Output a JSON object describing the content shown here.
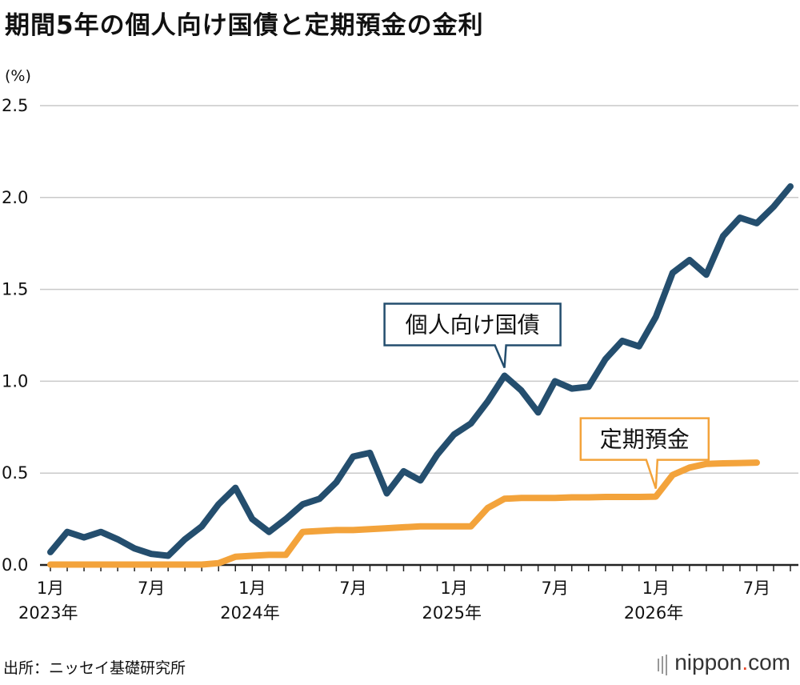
{
  "chart_data": {
    "type": "line",
    "title": "期間5年の個人向け国債と定期預金の金利",
    "unit_label": "(%)",
    "ylim": [
      0,
      2.5
    ],
    "y_ticks": [
      "0.0",
      "0.5",
      "1.0",
      "1.5",
      "2.0",
      "2.5"
    ],
    "x_range": [
      "2023-01",
      "2026-09"
    ],
    "x_ticks": [
      {
        "date": "2023-01",
        "month": "1月",
        "year": "2023年"
      },
      {
        "date": "2023-07",
        "month": "7月",
        "year": ""
      },
      {
        "date": "2024-01",
        "month": "1月",
        "year": "2024年"
      },
      {
        "date": "2024-07",
        "month": "7月",
        "year": ""
      },
      {
        "date": "2025-01",
        "month": "1月",
        "year": "2025年"
      },
      {
        "date": "2025-07",
        "month": "7月",
        "year": ""
      },
      {
        "date": "2026-01",
        "month": "1月",
        "year": "2026年"
      },
      {
        "date": "2026-07",
        "month": "7月",
        "year": ""
      }
    ],
    "grid": true,
    "series": [
      {
        "name": "個人向け国債",
        "color": "#244e6e",
        "label_date": "2025-04",
        "points": [
          [
            "2023-01",
            0.07
          ],
          [
            "2023-02",
            0.18
          ],
          [
            "2023-03",
            0.15
          ],
          [
            "2023-04",
            0.18
          ],
          [
            "2023-05",
            0.14
          ],
          [
            "2023-06",
            0.09
          ],
          [
            "2023-07",
            0.06
          ],
          [
            "2023-08",
            0.05
          ],
          [
            "2023-09",
            0.14
          ],
          [
            "2023-10",
            0.21
          ],
          [
            "2023-11",
            0.33
          ],
          [
            "2023-12",
            0.42
          ],
          [
            "2024-01",
            0.25
          ],
          [
            "2024-02",
            0.18
          ],
          [
            "2024-03",
            0.25
          ],
          [
            "2024-04",
            0.33
          ],
          [
            "2024-05",
            0.36
          ],
          [
            "2024-06",
            0.45
          ],
          [
            "2024-07",
            0.59
          ],
          [
            "2024-08",
            0.61
          ],
          [
            "2024-09",
            0.39
          ],
          [
            "2024-10",
            0.51
          ],
          [
            "2024-11",
            0.46
          ],
          [
            "2024-12",
            0.6
          ],
          [
            "2025-01",
            0.71
          ],
          [
            "2025-02",
            0.77
          ],
          [
            "2025-03",
            0.89
          ],
          [
            "2025-04",
            1.03
          ],
          [
            "2025-05",
            0.95
          ],
          [
            "2025-06",
            0.83
          ],
          [
            "2025-07",
            1.0
          ],
          [
            "2025-08",
            0.96
          ],
          [
            "2025-09",
            0.97
          ],
          [
            "2025-10",
            1.12
          ],
          [
            "2025-11",
            1.22
          ],
          [
            "2025-12",
            1.19
          ],
          [
            "2026-01",
            1.35
          ],
          [
            "2026-02",
            1.59
          ],
          [
            "2026-03",
            1.66
          ],
          [
            "2026-04",
            1.58
          ],
          [
            "2026-05",
            1.79
          ],
          [
            "2026-06",
            1.89
          ],
          [
            "2026-07",
            1.86
          ],
          [
            "2026-08",
            1.95
          ],
          [
            "2026-09",
            2.06
          ]
        ]
      },
      {
        "name": "定期預金",
        "color": "#f3a33b",
        "label_date": "2026-01",
        "points": [
          [
            "2023-01",
            0.002
          ],
          [
            "2023-02",
            0.002
          ],
          [
            "2023-03",
            0.002
          ],
          [
            "2023-04",
            0.002
          ],
          [
            "2023-05",
            0.002
          ],
          [
            "2023-06",
            0.002
          ],
          [
            "2023-07",
            0.002
          ],
          [
            "2023-08",
            0.002
          ],
          [
            "2023-09",
            0.002
          ],
          [
            "2023-10",
            0.002
          ],
          [
            "2023-11",
            0.01
          ],
          [
            "2023-12",
            0.045
          ],
          [
            "2024-01",
            0.05
          ],
          [
            "2024-02",
            0.055
          ],
          [
            "2024-03",
            0.055
          ],
          [
            "2024-04",
            0.18
          ],
          [
            "2024-05",
            0.185
          ],
          [
            "2024-06",
            0.19
          ],
          [
            "2024-07",
            0.19
          ],
          [
            "2024-08",
            0.195
          ],
          [
            "2024-09",
            0.2
          ],
          [
            "2024-10",
            0.205
          ],
          [
            "2024-11",
            0.21
          ],
          [
            "2024-12",
            0.21
          ],
          [
            "2025-01",
            0.21
          ],
          [
            "2025-02",
            0.21
          ],
          [
            "2025-03",
            0.31
          ],
          [
            "2025-04",
            0.36
          ],
          [
            "2025-05",
            0.365
          ],
          [
            "2025-06",
            0.365
          ],
          [
            "2025-07",
            0.365
          ],
          [
            "2025-08",
            0.368
          ],
          [
            "2025-09",
            0.368
          ],
          [
            "2025-10",
            0.37
          ],
          [
            "2025-11",
            0.37
          ],
          [
            "2025-12",
            0.37
          ],
          [
            "2026-01",
            0.372
          ],
          [
            "2026-02",
            0.49
          ],
          [
            "2026-03",
            0.53
          ],
          [
            "2026-04",
            0.55
          ],
          [
            "2026-05",
            0.553
          ],
          [
            "2026-06",
            0.555
          ],
          [
            "2026-07",
            0.557
          ]
        ]
      }
    ]
  },
  "source_note": "出所：ニッセイ基礎研究所",
  "brand": {
    "name": "nippon",
    "dot": ".",
    "suffix": "com"
  }
}
